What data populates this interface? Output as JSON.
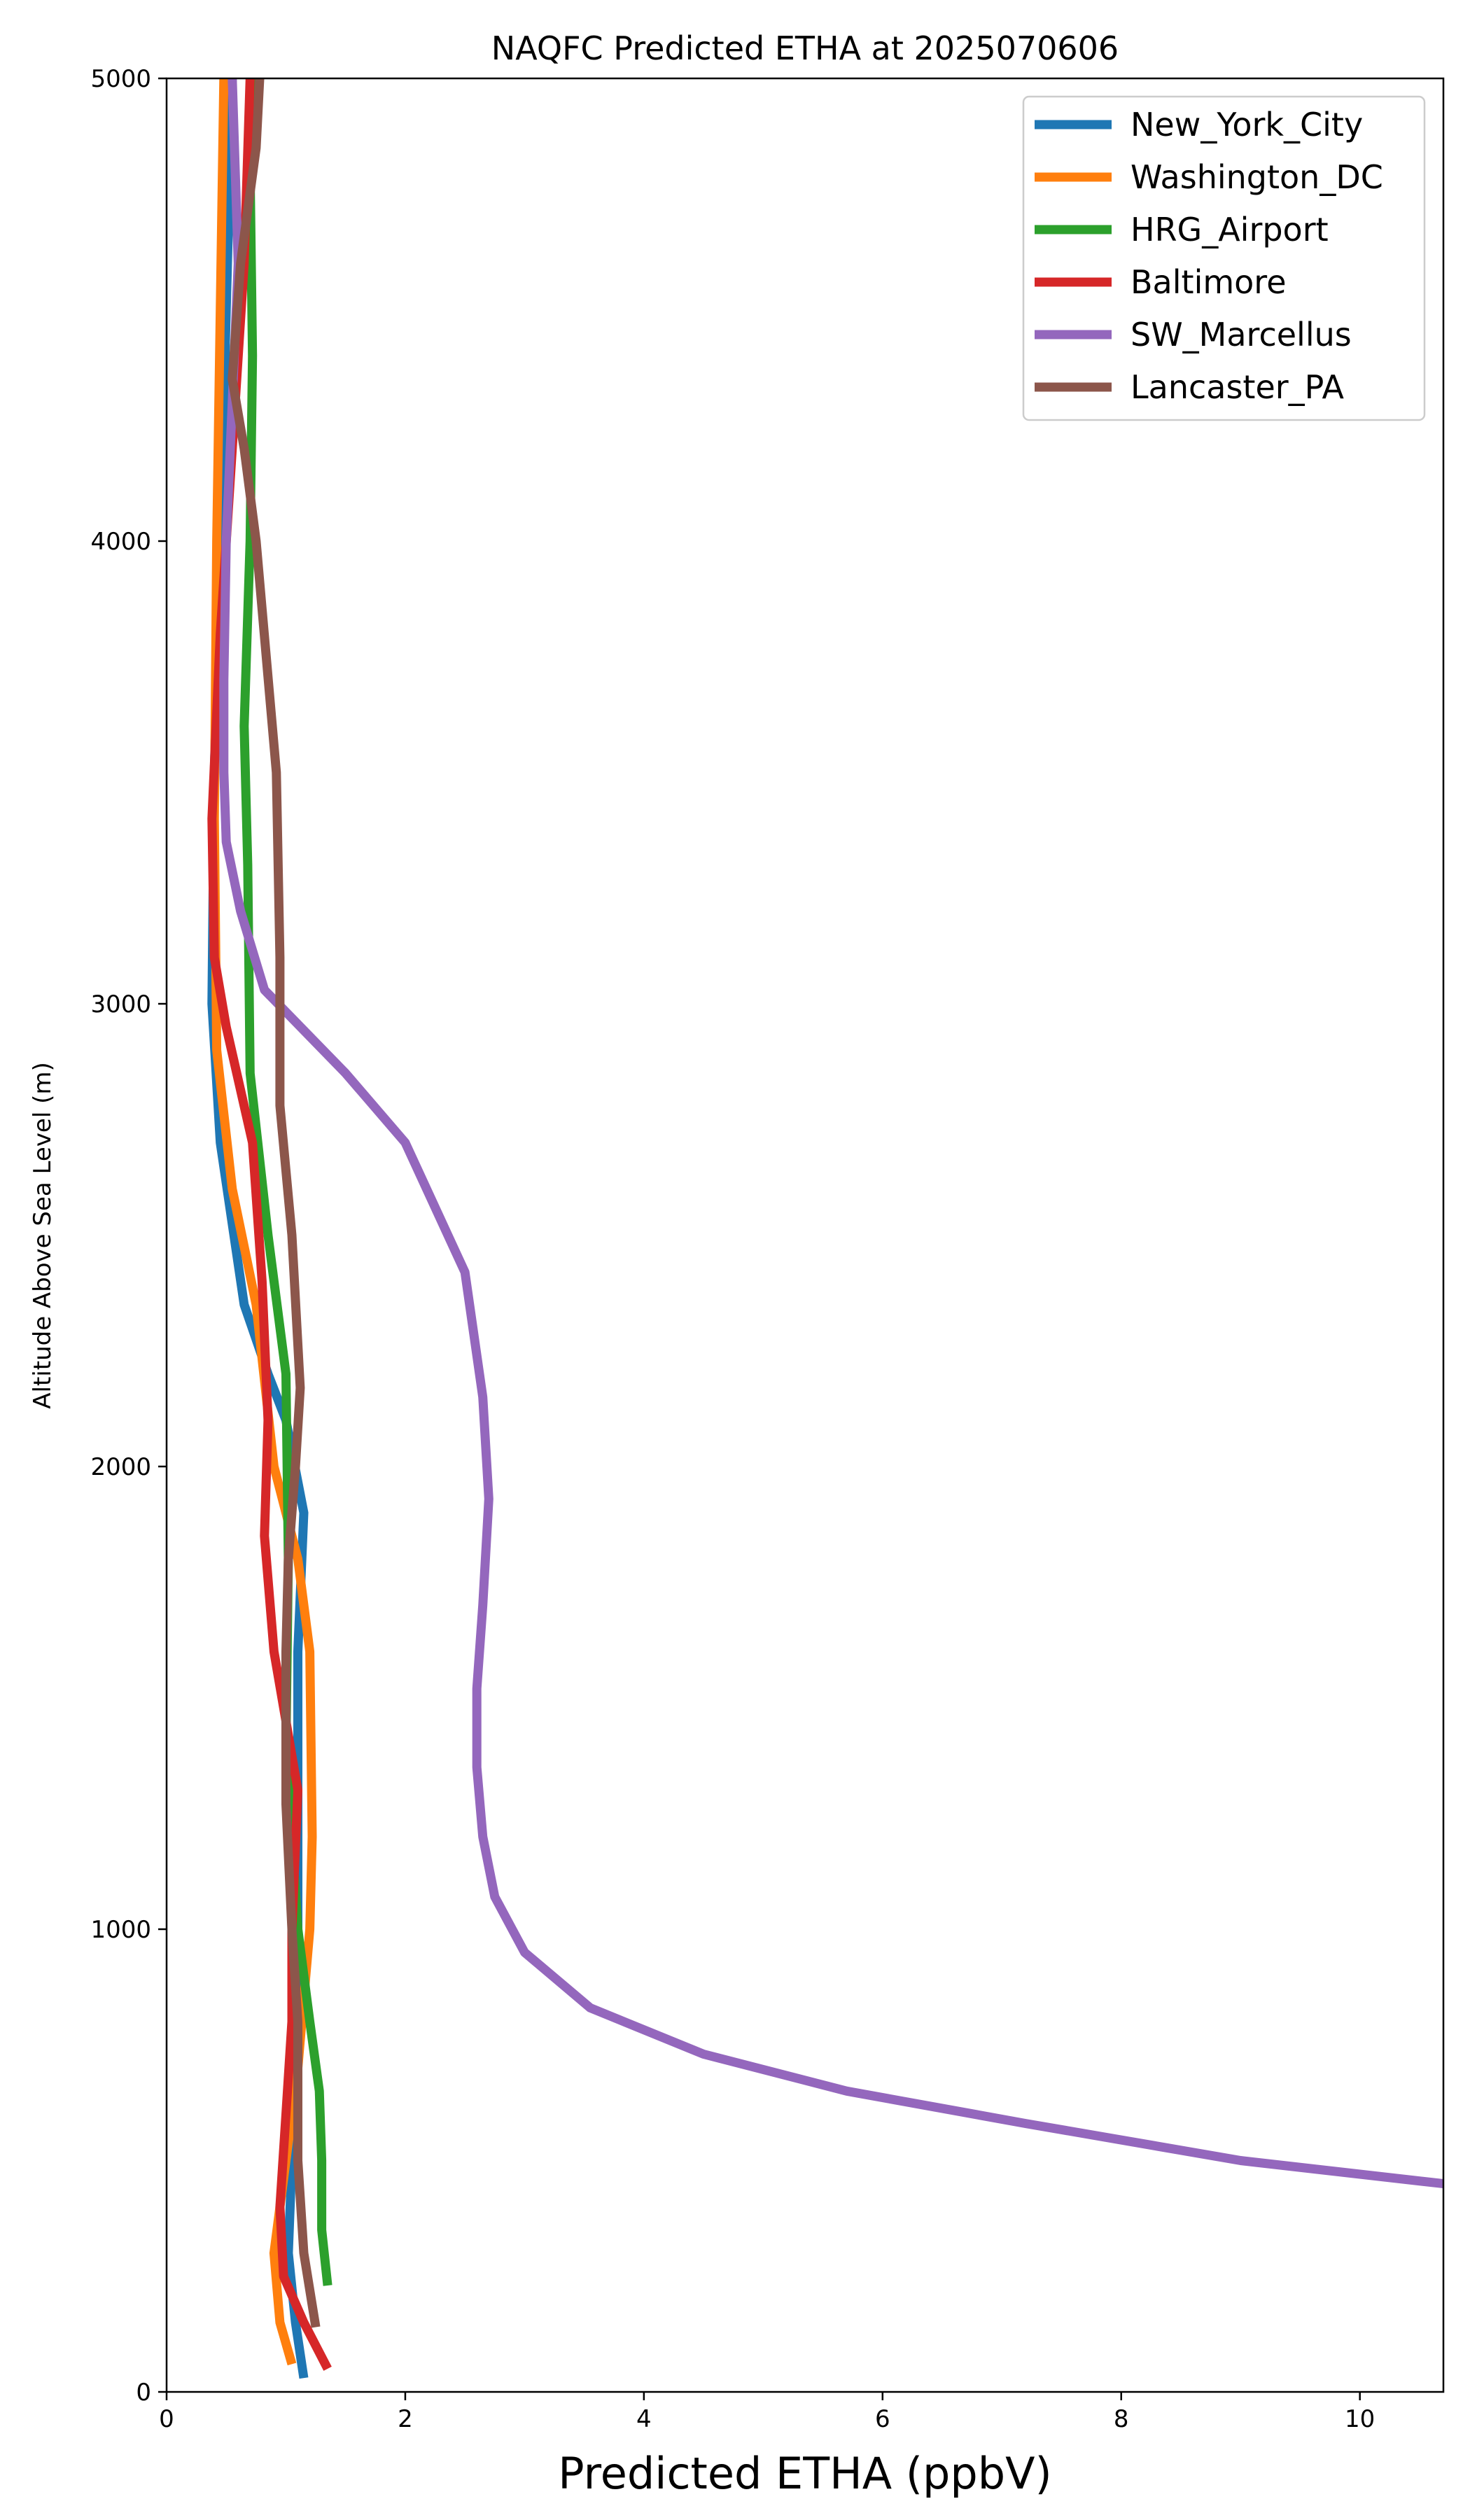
{
  "chart_data": {
    "type": "line",
    "title": "NAQFC Predicted ETHA at 2025070606",
    "xlabel": "Predicted ETHA (ppbV)",
    "ylabel": "Altitude Above Sea Level (m)",
    "xlim": [
      0,
      10.7
    ],
    "ylim": [
      0,
      5000
    ],
    "xticks": [
      0,
      2,
      4,
      6,
      8,
      10
    ],
    "yticks": [
      0,
      1000,
      2000,
      3000,
      4000,
      5000
    ],
    "grid": false,
    "legend_position": "top-right",
    "series": [
      {
        "name": "New_York_City",
        "color": "#1f77b4",
        "points": [
          [
            1.15,
            30
          ],
          [
            1.08,
            150
          ],
          [
            1.02,
            300
          ],
          [
            1.05,
            500
          ],
          [
            1.08,
            700
          ],
          [
            1.1,
            1000
          ],
          [
            1.1,
            1300
          ],
          [
            1.1,
            1600
          ],
          [
            1.15,
            1900
          ],
          [
            1.0,
            2100
          ],
          [
            0.85,
            2200
          ],
          [
            0.65,
            2350
          ],
          [
            0.45,
            2700
          ],
          [
            0.38,
            3000
          ],
          [
            0.4,
            3500
          ],
          [
            0.45,
            4000
          ],
          [
            0.5,
            4500
          ],
          [
            0.55,
            5000
          ]
        ]
      },
      {
        "name": "Washington_DC",
        "color": "#ff7f0e",
        "points": [
          [
            1.05,
            60
          ],
          [
            0.95,
            150
          ],
          [
            0.9,
            300
          ],
          [
            1.0,
            500
          ],
          [
            1.1,
            700
          ],
          [
            1.2,
            1000
          ],
          [
            1.22,
            1200
          ],
          [
            1.2,
            1600
          ],
          [
            1.1,
            1800
          ],
          [
            0.9,
            2000
          ],
          [
            0.75,
            2350
          ],
          [
            0.55,
            2600
          ],
          [
            0.42,
            2900
          ],
          [
            0.4,
            3400
          ],
          [
            0.42,
            4000
          ],
          [
            0.45,
            4500
          ],
          [
            0.48,
            5000
          ]
        ]
      },
      {
        "name": "HRG_Airport",
        "color": "#2ca02c",
        "points": [
          [
            1.35,
            230
          ],
          [
            1.3,
            350
          ],
          [
            1.3,
            500
          ],
          [
            1.28,
            650
          ],
          [
            1.2,
            800
          ],
          [
            1.1,
            1000
          ],
          [
            1.0,
            1400
          ],
          [
            1.02,
            1800
          ],
          [
            1.0,
            2200
          ],
          [
            0.85,
            2500
          ],
          [
            0.7,
            2850
          ],
          [
            0.68,
            3300
          ],
          [
            0.65,
            3600
          ],
          [
            0.7,
            4000
          ],
          [
            0.72,
            4400
          ],
          [
            0.7,
            4800
          ],
          [
            0.75,
            5000
          ]
        ]
      },
      {
        "name": "Baltimore",
        "color": "#d62728",
        "points": [
          [
            1.35,
            50
          ],
          [
            1.15,
            150
          ],
          [
            0.98,
            250
          ],
          [
            0.95,
            400
          ],
          [
            1.0,
            600
          ],
          [
            1.05,
            800
          ],
          [
            1.05,
            1000
          ],
          [
            1.1,
            1300
          ],
          [
            0.9,
            1600
          ],
          [
            0.82,
            1850
          ],
          [
            0.85,
            2100
          ],
          [
            0.8,
            2400
          ],
          [
            0.72,
            2700
          ],
          [
            0.5,
            2950
          ],
          [
            0.4,
            3100
          ],
          [
            0.38,
            3400
          ],
          [
            0.45,
            3800
          ],
          [
            0.55,
            4200
          ],
          [
            0.65,
            4600
          ],
          [
            0.7,
            5000
          ]
        ]
      },
      {
        "name": "SW_Marcellus",
        "color": "#9467bd",
        "points": [
          [
            10.7,
            450
          ],
          [
            9.0,
            500
          ],
          [
            7.2,
            580
          ],
          [
            5.7,
            650
          ],
          [
            4.5,
            730
          ],
          [
            3.55,
            830
          ],
          [
            3.0,
            950
          ],
          [
            2.75,
            1070
          ],
          [
            2.65,
            1200
          ],
          [
            2.6,
            1350
          ],
          [
            2.6,
            1520
          ],
          [
            2.65,
            1700
          ],
          [
            2.7,
            1930
          ],
          [
            2.65,
            2150
          ],
          [
            2.5,
            2420
          ],
          [
            2.0,
            2700
          ],
          [
            1.5,
            2850
          ],
          [
            0.82,
            3030
          ],
          [
            0.62,
            3200
          ],
          [
            0.5,
            3350
          ],
          [
            0.48,
            3500
          ],
          [
            0.48,
            3700
          ],
          [
            0.5,
            4000
          ],
          [
            0.55,
            4300
          ],
          [
            0.6,
            4600
          ],
          [
            0.55,
            5000
          ]
        ]
      },
      {
        "name": "Lancaster_PA",
        "color": "#8c564b",
        "points": [
          [
            1.25,
            140
          ],
          [
            1.15,
            300
          ],
          [
            1.1,
            500
          ],
          [
            1.1,
            800
          ],
          [
            1.05,
            1000
          ],
          [
            1.0,
            1270
          ],
          [
            1.0,
            1600
          ],
          [
            1.02,
            1800
          ],
          [
            1.08,
            2000
          ],
          [
            1.12,
            2170
          ],
          [
            1.05,
            2500
          ],
          [
            0.95,
            2780
          ],
          [
            0.95,
            3100
          ],
          [
            0.92,
            3500
          ],
          [
            0.75,
            4000
          ],
          [
            0.65,
            4200
          ],
          [
            0.55,
            4350
          ],
          [
            0.62,
            4600
          ],
          [
            0.75,
            4850
          ],
          [
            0.78,
            5000
          ]
        ]
      }
    ]
  }
}
